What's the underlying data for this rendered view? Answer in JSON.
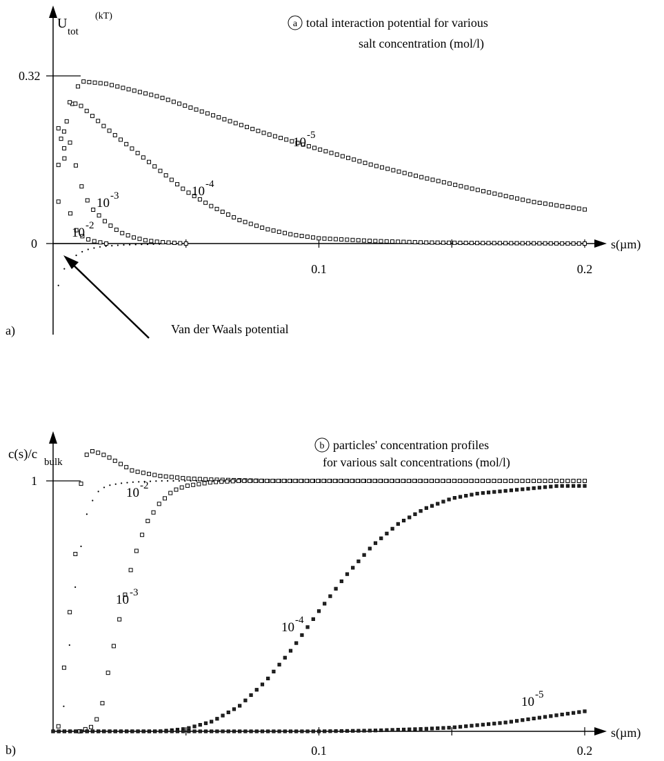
{
  "chart_data": [
    {
      "panel_label": "a)",
      "type": "scatter",
      "title_marker": "a",
      "title_line1": "total interaction potential for various",
      "title_line2": "salt concentration (mol/l)",
      "ylabel_main": "U",
      "ylabel_sub": "tot",
      "ylabel_unit": "(kT)",
      "xlabel": "s(µm)",
      "xlim": [
        0,
        0.2
      ],
      "ylim": [
        -0.1,
        0.4
      ],
      "x_ticks": [
        {
          "value": 0.05,
          "label": ""
        },
        {
          "value": 0.1,
          "label": "0.1"
        },
        {
          "value": 0.15,
          "label": ""
        },
        {
          "value": 0.2,
          "label": "0.2"
        }
      ],
      "y_ticks": [
        {
          "value": 0,
          "label": "0"
        },
        {
          "value": 0.32,
          "label": "0.32"
        }
      ],
      "grid": false,
      "annotation": "Van der Waals potential",
      "series": [
        {
          "name": "10^-5",
          "label_base": "10",
          "label_exp": "-5",
          "marker": "square-open",
          "x": [
            0.003,
            0.01,
            0.02,
            0.04,
            0.06,
            0.08,
            0.1,
            0.12,
            0.14,
            0.16,
            0.18,
            0.2
          ],
          "y": [
            0.2,
            0.31,
            0.305,
            0.28,
            0.245,
            0.21,
            0.18,
            0.15,
            0.125,
            0.102,
            0.08,
            0.065
          ]
        },
        {
          "name": "10^-4",
          "label_base": "10",
          "label_exp": "-4",
          "marker": "square-open",
          "x": [
            0.002,
            0.006,
            0.01,
            0.02,
            0.03,
            0.04,
            0.05,
            0.06,
            0.07,
            0.08,
            0.09,
            0.1,
            0.12,
            0.14,
            0.16,
            0.18,
            0.2
          ],
          "y": [
            0.15,
            0.27,
            0.265,
            0.22,
            0.18,
            0.14,
            0.1,
            0.07,
            0.045,
            0.028,
            0.017,
            0.01,
            0.005,
            0.002,
            0.001,
            0.0005,
            0.0
          ],
          "x_end": 0.2
        },
        {
          "name": "10^-3",
          "label_base": "10",
          "label_exp": "-3",
          "marker": "square-open",
          "x": [
            0.002,
            0.004,
            0.006,
            0.008,
            0.01,
            0.012,
            0.015,
            0.018,
            0.02,
            0.025,
            0.03,
            0.035,
            0.04,
            0.045,
            0.05
          ],
          "y": [
            0.08,
            0.18,
            0.2,
            0.16,
            0.12,
            0.09,
            0.065,
            0.05,
            0.04,
            0.022,
            0.012,
            0.006,
            0.003,
            0.0015,
            0.0
          ]
        },
        {
          "name": "10^-2",
          "label_base": "10",
          "label_exp": "-2",
          "marker": "square-open",
          "x": [
            0.002,
            0.003,
            0.004,
            0.005,
            0.006,
            0.007,
            0.008,
            0.01,
            0.012,
            0.015,
            0.02
          ],
          "y": [
            0.22,
            0.24,
            0.18,
            0.11,
            0.07,
            0.045,
            0.03,
            0.018,
            0.01,
            0.005,
            0.0
          ]
        },
        {
          "name": "Van der Waals",
          "marker": "dot",
          "x": [
            0.002,
            0.004,
            0.006,
            0.008,
            0.01,
            0.012,
            0.014,
            0.016,
            0.018,
            0.02,
            0.025,
            0.03,
            0.04
          ],
          "y": [
            -0.08,
            -0.05,
            -0.035,
            -0.025,
            -0.018,
            -0.013,
            -0.01,
            -0.008,
            -0.006,
            -0.005,
            -0.003,
            -0.002,
            -0.001
          ]
        }
      ]
    },
    {
      "panel_label": "b)",
      "type": "scatter",
      "title_marker": "b",
      "title_line1": "particles' concentration profiles",
      "title_line2": "for various salt concentrations (mol/l)",
      "ylabel_main": "c(s)/c",
      "ylabel_sub": "bulk",
      "xlabel": "s(µm)",
      "xlim": [
        0,
        0.2
      ],
      "ylim": [
        0,
        1.3
      ],
      "x_ticks": [
        {
          "value": 0.05,
          "label": ""
        },
        {
          "value": 0.1,
          "label": "0.1"
        },
        {
          "value": 0.15,
          "label": ""
        },
        {
          "value": 0.2,
          "label": "0.2"
        }
      ],
      "y_ticks": [
        {
          "value": 1,
          "label": "1"
        }
      ],
      "grid": false,
      "series": [
        {
          "name": "10^-2",
          "label_base": "10",
          "label_exp": "-2",
          "marker": "square-open",
          "x": [
            0.002,
            0.005,
            0.008,
            0.01,
            0.012,
            0.015,
            0.02,
            0.025,
            0.03,
            0.04,
            0.05,
            0.06,
            0.08,
            0.1,
            0.12,
            0.15,
            0.2
          ],
          "y": [
            0.02,
            0.35,
            0.65,
            0.95,
            1.1,
            1.12,
            1.1,
            1.07,
            1.04,
            1.02,
            1.01,
            1.005,
            1.0,
            1.0,
            1.0,
            1.0,
            1.0
          ]
        },
        {
          "name": "Van der Waals",
          "marker": "dot",
          "x": [
            0.004,
            0.008,
            0.012,
            0.016,
            0.02,
            0.025,
            0.03,
            0.04,
            0.05,
            0.06,
            0.08
          ],
          "y": [
            0.1,
            0.55,
            0.85,
            0.95,
            0.98,
            0.99,
            0.995,
            1.0,
            1.0,
            1.0,
            1.0
          ]
        },
        {
          "name": "10^-3",
          "label_base": "10",
          "label_exp": "-3",
          "marker": "square-open",
          "x": [
            0.01,
            0.015,
            0.018,
            0.02,
            0.025,
            0.03,
            0.035,
            0.04,
            0.045,
            0.05,
            0.06,
            0.07,
            0.08,
            0.1,
            0.15,
            0.2
          ],
          "y": [
            0.0,
            0.02,
            0.08,
            0.2,
            0.45,
            0.68,
            0.83,
            0.91,
            0.96,
            0.98,
            0.995,
            1.0,
            1.0,
            1.0,
            1.0,
            1.0
          ]
        },
        {
          "name": "10^-4",
          "label_base": "10",
          "label_exp": "-4",
          "marker": "square-filled",
          "x": [
            0.0,
            0.04,
            0.05,
            0.06,
            0.07,
            0.08,
            0.09,
            0.1,
            0.11,
            0.12,
            0.13,
            0.14,
            0.15,
            0.16,
            0.17,
            0.18,
            0.19,
            0.2
          ],
          "y": [
            0.0,
            0.0,
            0.01,
            0.04,
            0.1,
            0.2,
            0.33,
            0.48,
            0.62,
            0.74,
            0.83,
            0.89,
            0.93,
            0.95,
            0.96,
            0.97,
            0.98,
            0.98
          ]
        },
        {
          "name": "10^-5",
          "label_base": "10",
          "label_exp": "-5",
          "marker": "square-filled",
          "x": [
            0.0,
            0.1,
            0.12,
            0.14,
            0.15,
            0.16,
            0.17,
            0.18,
            0.19,
            0.2
          ],
          "y": [
            0.0,
            0.0,
            0.003,
            0.01,
            0.015,
            0.025,
            0.035,
            0.05,
            0.065,
            0.08
          ]
        }
      ]
    }
  ]
}
